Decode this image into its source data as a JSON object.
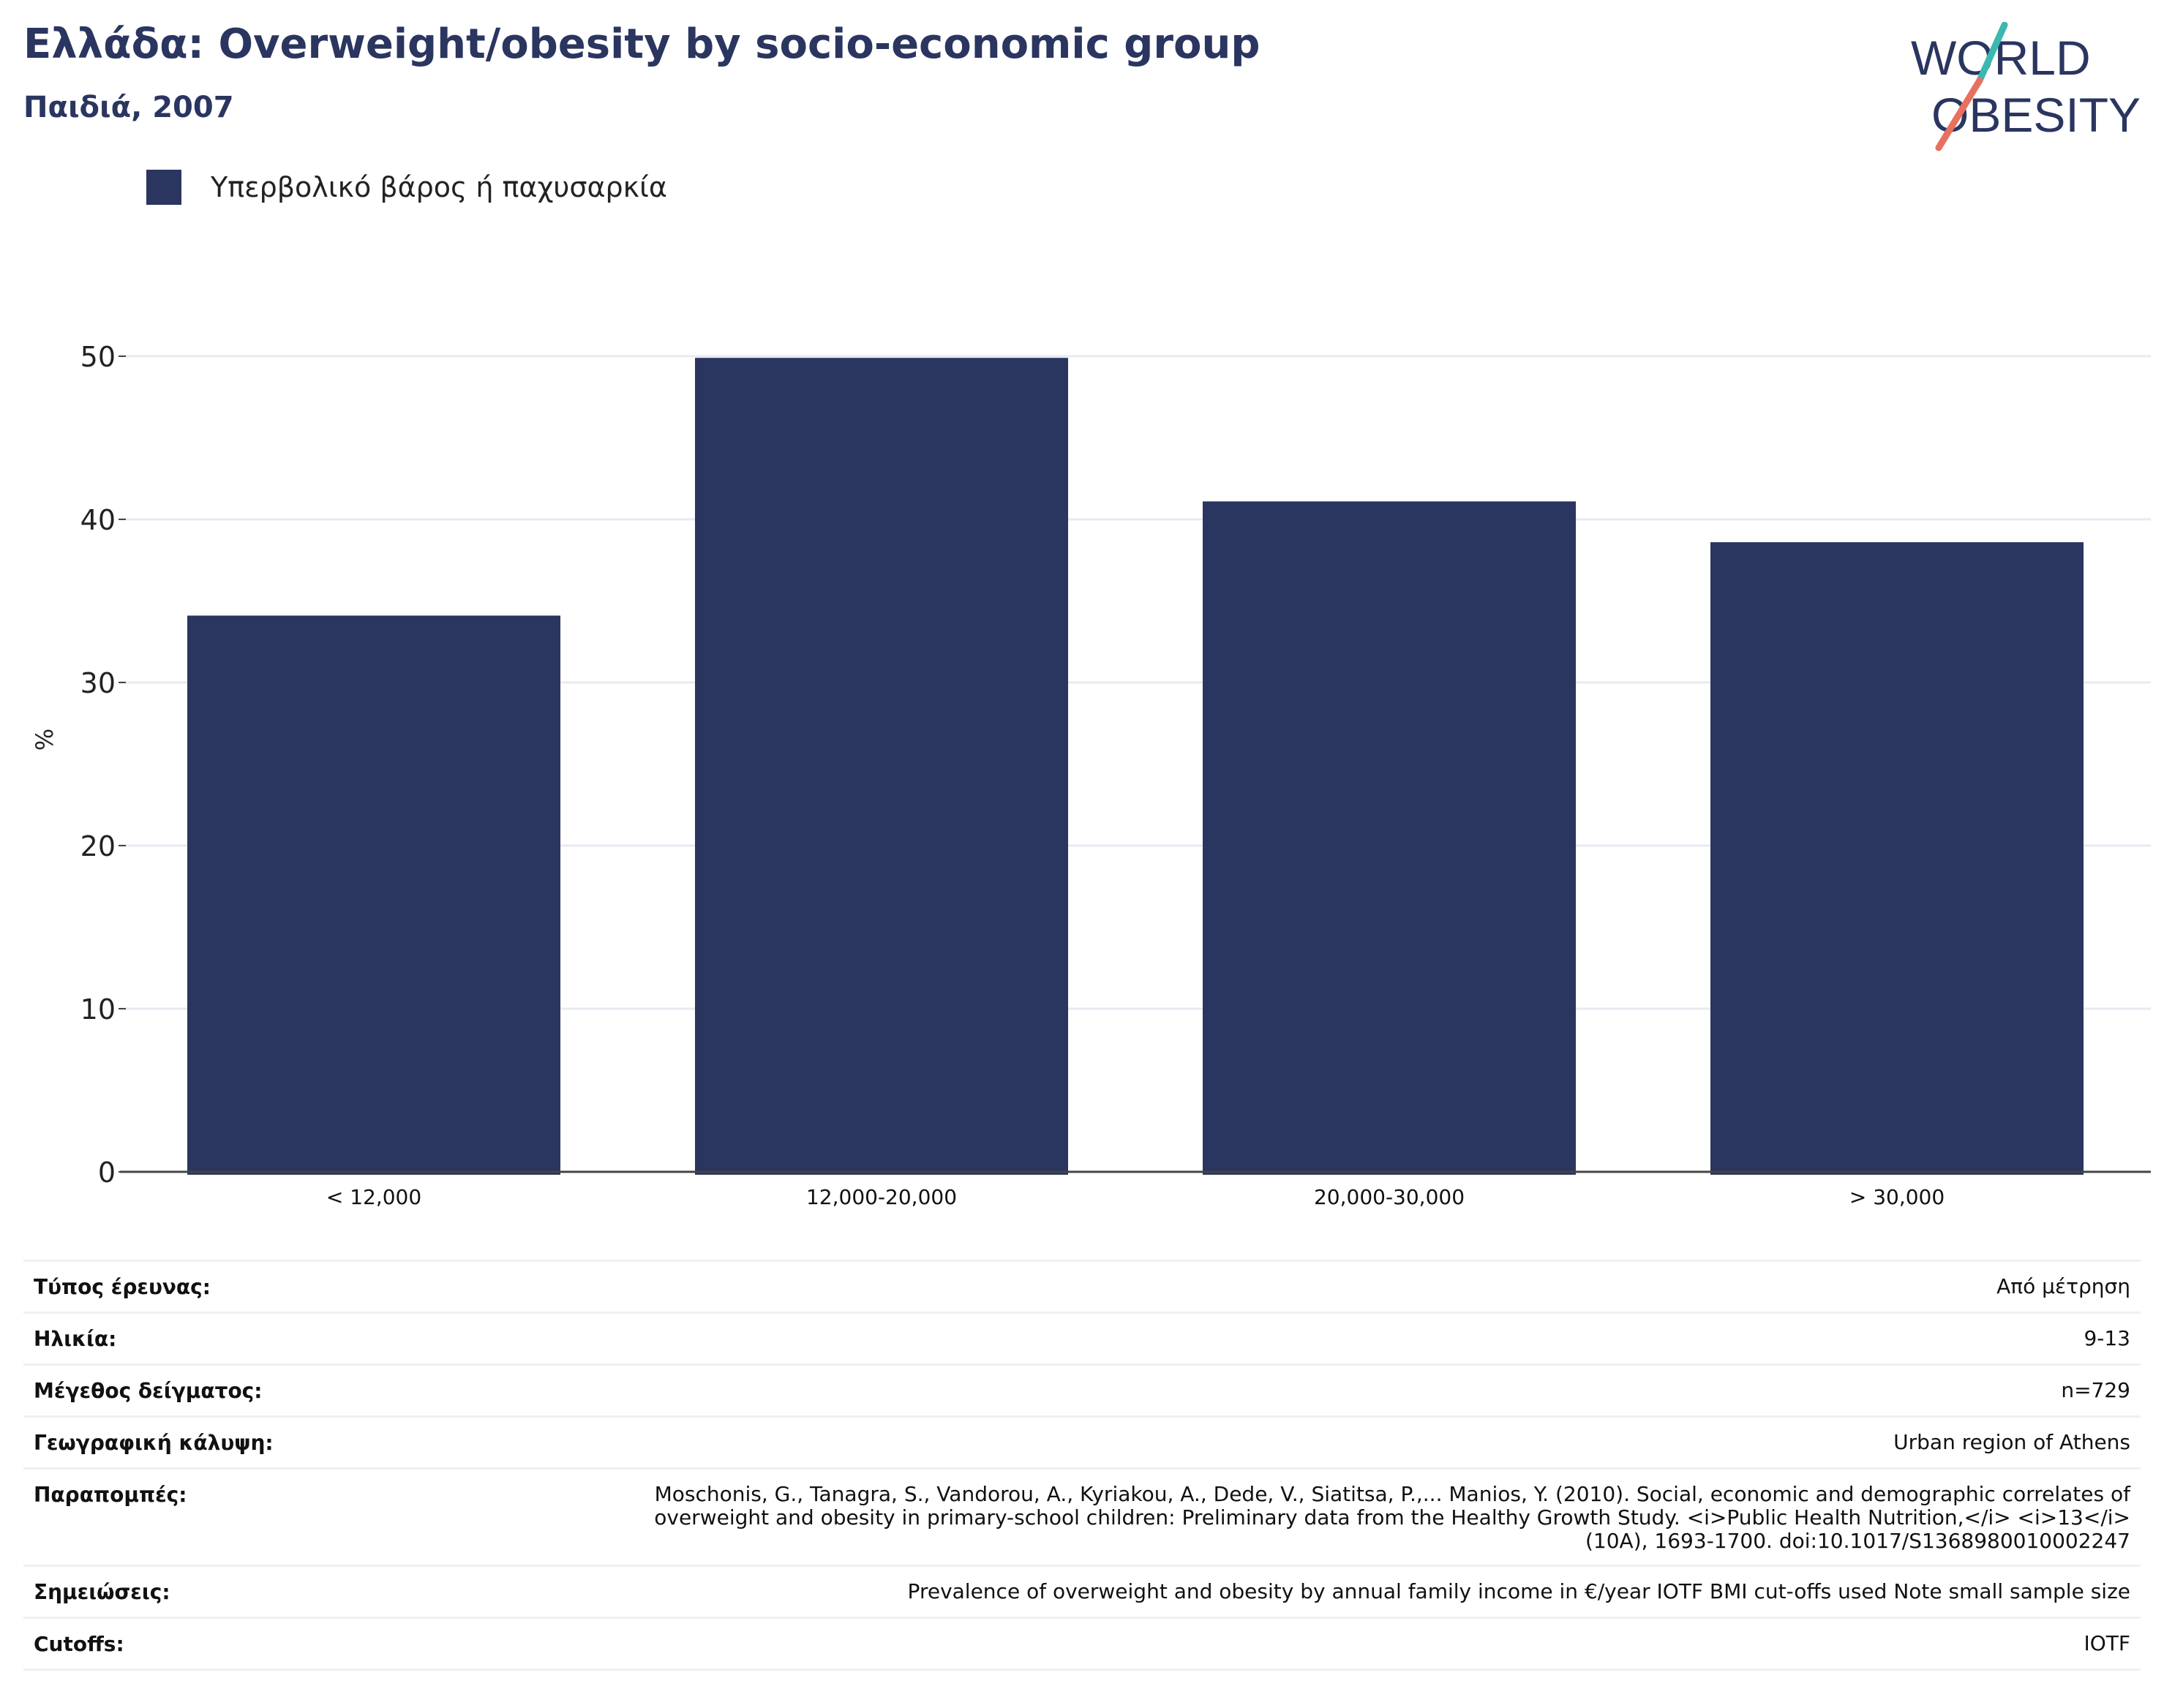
{
  "header": {
    "title": "Ελλάδα: Overweight/obesity by socio-economic group",
    "subtitle": "Παιδιά, 2007"
  },
  "logo": {
    "line1": "WORLD",
    "line2": "OBESITY",
    "colors": {
      "text": "#2a3560",
      "slash_top": "#3bb8b0",
      "slash_bottom": "#e8705f"
    }
  },
  "legend": {
    "label": "Υπερβολικό βάρος ή παχυσαρκία",
    "color": "#2a3560"
  },
  "chart_data": {
    "type": "bar",
    "title": "Ελλάδα: Overweight/obesity by socio-economic group",
    "subtitle": "Παιδιά, 2007",
    "categories": [
      "< 12,000",
      "12,000-20,000",
      "20,000-30,000",
      "> 30,000"
    ],
    "series": [
      {
        "name": "Υπερβολικό βάρος ή παχυσαρκία",
        "values": [
          34.1,
          49.9,
          41.1,
          38.6
        ],
        "color": "#2a3560"
      }
    ],
    "ylabel": "%",
    "xlabel": "",
    "ylim": [
      0,
      53
    ],
    "yticks": [
      0,
      10,
      20,
      30,
      40,
      50
    ],
    "grid": true,
    "legend_position": "top-left"
  },
  "details": [
    {
      "key": "Τύπος έρευνας:",
      "value": "Από μέτρηση"
    },
    {
      "key": "Ηλικία:",
      "value": "9-13"
    },
    {
      "key": "Μέγεθος δείγματος:",
      "value": "n=729"
    },
    {
      "key": "Γεωγραφική κάλυψη:",
      "value": "Urban region of Athens"
    },
    {
      "key": "Παραπομπές:",
      "value": "Moschonis, G., Tanagra, S., Vandorou, A., Kyriakou, A., Dede, V., Siatitsa, P.,... Manios, Y. (2010). Social, economic and demographic correlates of overweight and obesity in primary-school children: Preliminary data from the Healthy Growth Study. <i>Public Health Nutrition,</i> <i>13</i>(10A), 1693-1700. doi:10.1017/S1368980010002247"
    },
    {
      "key": "Σημειώσεις:",
      "value": "Prevalence of overweight and obesity by annual family income in €/year IOTF BMI cut-offs used Note small sample size"
    },
    {
      "key": "Cutoffs:",
      "value": "IOTF"
    }
  ]
}
